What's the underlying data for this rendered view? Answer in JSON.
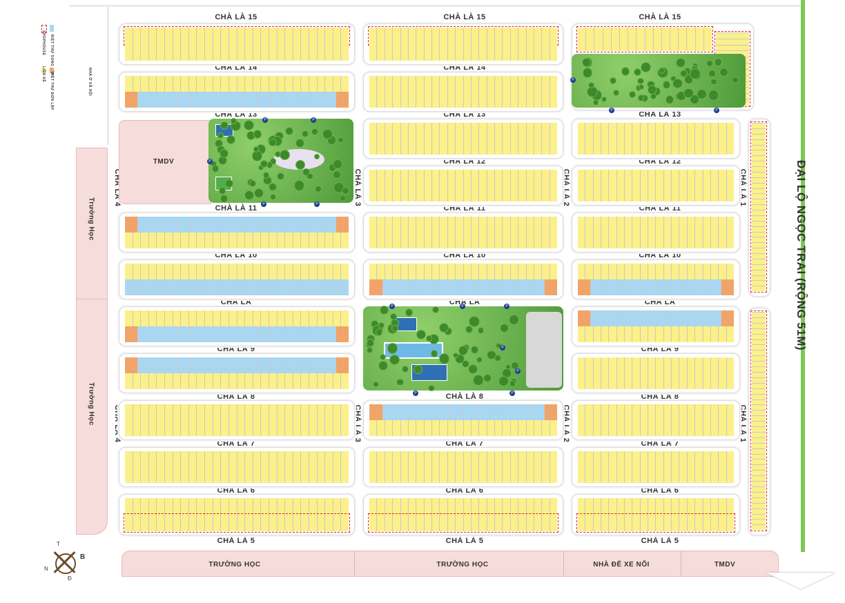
{
  "streets": {
    "cl15": "CHÀ LÀ 15",
    "cl14": "CHÀ LÀ 14",
    "cl13": "CHÀ LÀ 13",
    "cl12": "CHÀ LÀ 12",
    "cl11": "CHÀ LÀ 11",
    "cl10": "CHÀ LÀ 10",
    "cl": "CHÀ LÀ",
    "cl9": "CHÀ LÀ 9",
    "cl8": "CHÀ LÀ 8",
    "cl7": "CHÀ LÀ 7",
    "cl6": "CHÀ LÀ 6",
    "cl5": "CHÀ LÀ 5",
    "cl4": "CHÀ LÀ 4",
    "cl3": "CHÀ LÀ 3",
    "cl2": "CHÀ LÀ 2",
    "cl1": "CHÀ LÀ 1"
  },
  "avenue": "ĐẠI LỘ NGỌC TRAI (RỘNG 51M)",
  "zones": {
    "tmdv": "TMDV",
    "truong_hoc": "Trường Học",
    "truong_hoc_bottom": "TRƯỜNG HỌC",
    "nha_de_xe": "NHÀ ĐỂ XE NỔI",
    "tmdv_bottom": "TMDV",
    "nha_o_xa_hoi": "NHÀ Ở XÃ HỘI"
  },
  "legend": {
    "shophouse": "SHOPHOUSE",
    "lien_ke": "LIỀN KỀ",
    "song_lap": "BIỆT THỰ SONG LẬP",
    "don_lap": "BIỆT THỰ ĐƠN LẬP"
  },
  "compass": {
    "t": "T",
    "b": "B",
    "n": "N",
    "d": "Đ"
  },
  "colors": {
    "lien_ke": "#fbf08a",
    "song_lap": "#a9d7f2",
    "don_lap": "#f0a46a",
    "shophouse": "#d9232e",
    "school": "#f7dcdc",
    "avenue": "#7dc855"
  }
}
